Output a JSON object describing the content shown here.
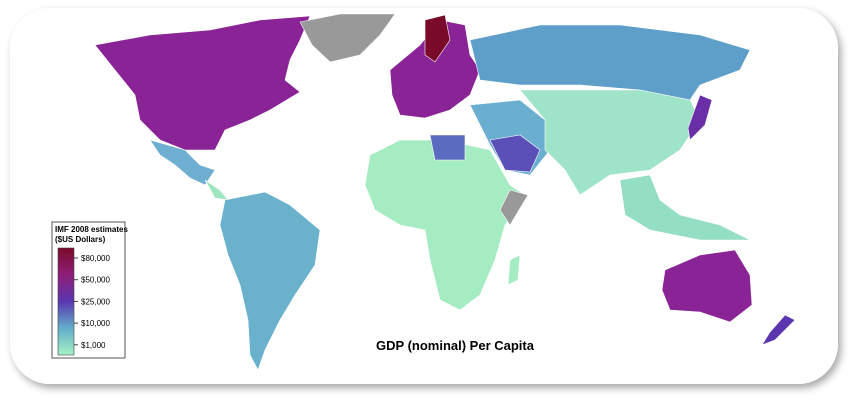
{
  "map": {
    "title": "GDP (nominal) Per Capita",
    "legend": {
      "title": [
        "IMF 2008 estimates",
        "($US Dollars)"
      ],
      "items": [
        {
          "label": "$80,000",
          "color": "#7a0a2a"
        },
        {
          "label": "$50,000",
          "color": "#8e1e78"
        },
        {
          "label": "$25,000",
          "color": "#5b36b0"
        },
        {
          "label": "$10,000",
          "color": "#62aecb"
        },
        {
          "label": "$1,000",
          "color": "#a6f2c4"
        }
      ]
    }
  }
}
